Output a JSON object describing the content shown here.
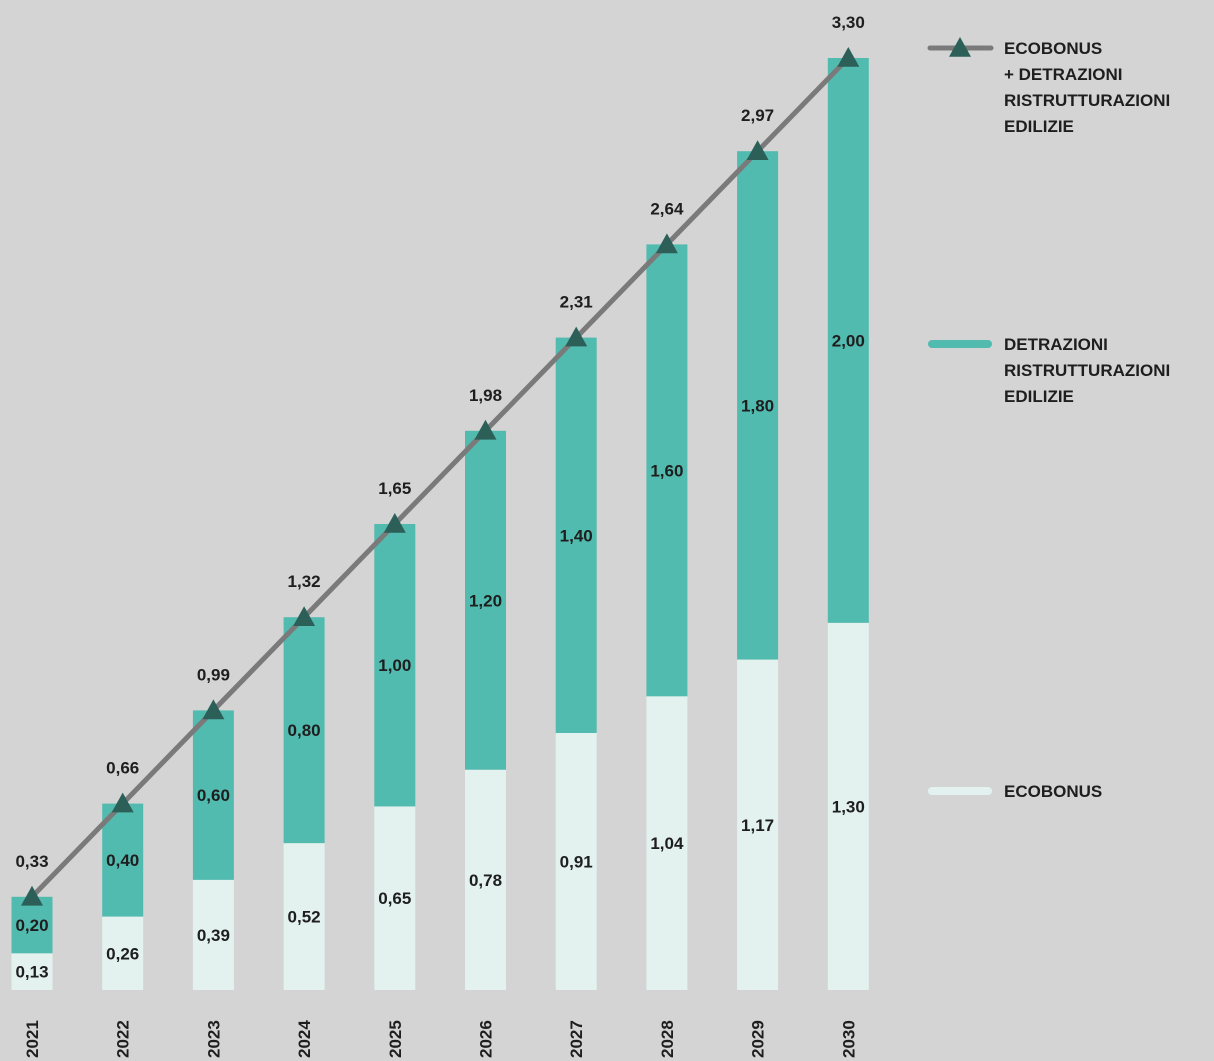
{
  "colors": {
    "background": "#d4d4d4",
    "ecobonus": "#e3f2ef",
    "detrazioni": "#52bbb0",
    "line": "#7a7a7a",
    "marker": "#2b5f58",
    "text": "#1e1e1e"
  },
  "chart_data": {
    "type": "bar",
    "stacked": true,
    "categories": [
      "2021",
      "2022",
      "2023",
      "2024",
      "2025",
      "2026",
      "2027",
      "2028",
      "2029",
      "2030"
    ],
    "series": [
      {
        "name": "ECOBONUS",
        "kind": "bar",
        "values": [
          0.13,
          0.26,
          0.39,
          0.52,
          0.65,
          0.78,
          0.91,
          1.04,
          1.17,
          1.3
        ],
        "labels": [
          "0,13",
          "0,26",
          "0,39",
          "0,52",
          "0,65",
          "0,78",
          "0,91",
          "1,04",
          "1,17",
          "1,30"
        ]
      },
      {
        "name": "DETRAZIONI RISTRUTTURAZIONI EDILIZIE",
        "kind": "bar",
        "values": [
          0.2,
          0.4,
          0.6,
          0.8,
          1.0,
          1.2,
          1.4,
          1.6,
          1.8,
          2.0
        ],
        "labels": [
          "0,20",
          "0,40",
          "0,60",
          "0,80",
          "1,00",
          "1,20",
          "1,40",
          "1,60",
          "1,80",
          "2,00"
        ]
      },
      {
        "name": "ECOBONUS + DETRAZIONI RISTRUTTURAZIONI EDILIZIE",
        "kind": "line",
        "marker": "triangle",
        "values": [
          0.33,
          0.66,
          0.99,
          1.32,
          1.65,
          1.98,
          2.31,
          2.64,
          2.97,
          3.3
        ],
        "labels": [
          "0,33",
          "0,66",
          "0,99",
          "1,32",
          "1,65",
          "1,98",
          "2,31",
          "2,64",
          "2,97",
          "3,30"
        ]
      }
    ],
    "ylim": [
      0,
      3.3
    ],
    "grid": false,
    "legend_position": "right"
  },
  "legend": [
    {
      "key": "total",
      "lines": [
        "ECOBONUS",
        "+ DETRAZIONI",
        "RISTRUTTURAZIONI",
        "EDILIZIE"
      ]
    },
    {
      "key": "detrazioni",
      "lines": [
        "DETRAZIONI",
        "RISTRUTTURAZIONI",
        " EDILIZIE"
      ]
    },
    {
      "key": "ecobonus",
      "lines": [
        "ECOBONUS"
      ]
    }
  ]
}
